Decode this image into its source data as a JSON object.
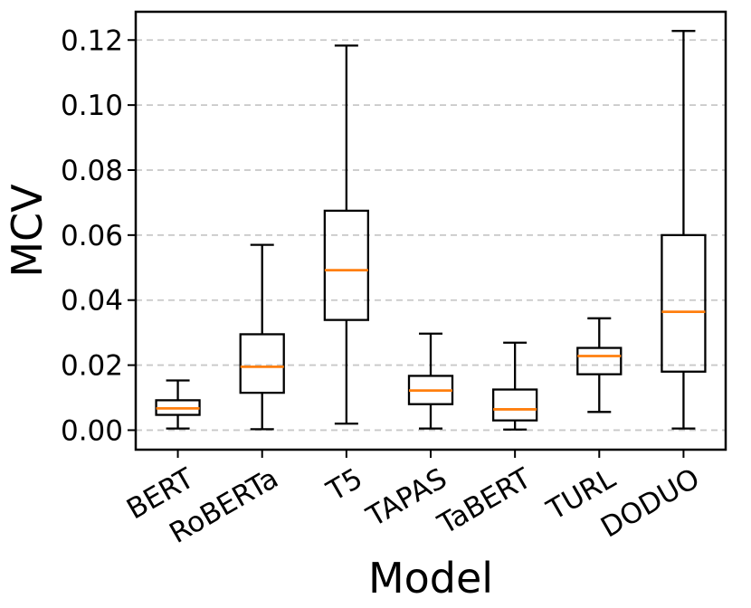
{
  "chart_data": {
    "type": "boxplot",
    "title": "",
    "xlabel": "Model",
    "ylabel": "MCV",
    "categories": [
      "BERT",
      "RoBERTa",
      "T5",
      "TAPAS",
      "TaBERT",
      "TURL",
      "DODUO"
    ],
    "series": [
      {
        "name": "BERT",
        "whislo": 0.0005,
        "q1": 0.0047,
        "med": 0.0067,
        "q3": 0.0092,
        "whishi": 0.0153
      },
      {
        "name": "RoBERTa",
        "whislo": 0.0003,
        "q1": 0.0115,
        "med": 0.0195,
        "q3": 0.0295,
        "whishi": 0.057
      },
      {
        "name": "T5",
        "whislo": 0.002,
        "q1": 0.0339,
        "med": 0.0492,
        "q3": 0.0675,
        "whishi": 0.1183
      },
      {
        "name": "TAPAS",
        "whislo": 0.0005,
        "q1": 0.008,
        "med": 0.0122,
        "q3": 0.0167,
        "whishi": 0.0297
      },
      {
        "name": "TaBERT",
        "whislo": 0.0002,
        "q1": 0.003,
        "med": 0.0064,
        "q3": 0.0125,
        "whishi": 0.0269
      },
      {
        "name": "TURL",
        "whislo": 0.0056,
        "q1": 0.0172,
        "med": 0.0228,
        "q3": 0.0253,
        "whishi": 0.0344
      },
      {
        "name": "DODUO",
        "whislo": 0.0005,
        "q1": 0.018,
        "med": 0.0364,
        "q3": 0.06,
        "whishi": 0.1228
      }
    ],
    "yticks": [
      0.0,
      0.02,
      0.04,
      0.06,
      0.08,
      0.1,
      0.12
    ],
    "ytick_labels": [
      "0.00",
      "0.02",
      "0.04",
      "0.06",
      "0.08",
      "0.10",
      "0.12"
    ],
    "ylim": [
      -0.006,
      0.1287
    ],
    "grid": true,
    "grid_style": "dashed",
    "legend": "none",
    "colors": {
      "median": "#ff7f0e",
      "box_edge": "#000000",
      "whisker": "#000000",
      "grid": "#c8c8c8",
      "spine": "#000000",
      "background": "#ffffff"
    }
  }
}
